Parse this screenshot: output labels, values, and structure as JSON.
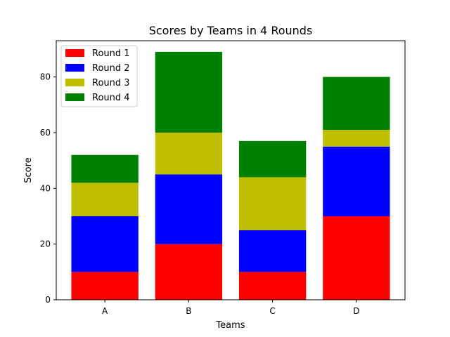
{
  "chart_data": {
    "type": "bar",
    "stacked": true,
    "title": "Scores by Teams in 4 Rounds",
    "xlabel": "Teams",
    "ylabel": "Score",
    "categories": [
      "A",
      "B",
      "C",
      "D"
    ],
    "ylim": [
      0,
      93
    ],
    "yticks": [
      0,
      20,
      40,
      60,
      80
    ],
    "grid": false,
    "legend_position": "top-left",
    "series": [
      {
        "name": "Round 1",
        "color": "#ff0000",
        "values": [
          10,
          20,
          10,
          30
        ]
      },
      {
        "name": "Round 2",
        "color": "#0000ff",
        "values": [
          20,
          25,
          15,
          25
        ]
      },
      {
        "name": "Round 3",
        "color": "#bfbf00",
        "values": [
          12,
          15,
          19,
          6
        ]
      },
      {
        "name": "Round 4",
        "color": "#008000",
        "values": [
          10,
          29,
          13,
          19
        ]
      }
    ]
  }
}
